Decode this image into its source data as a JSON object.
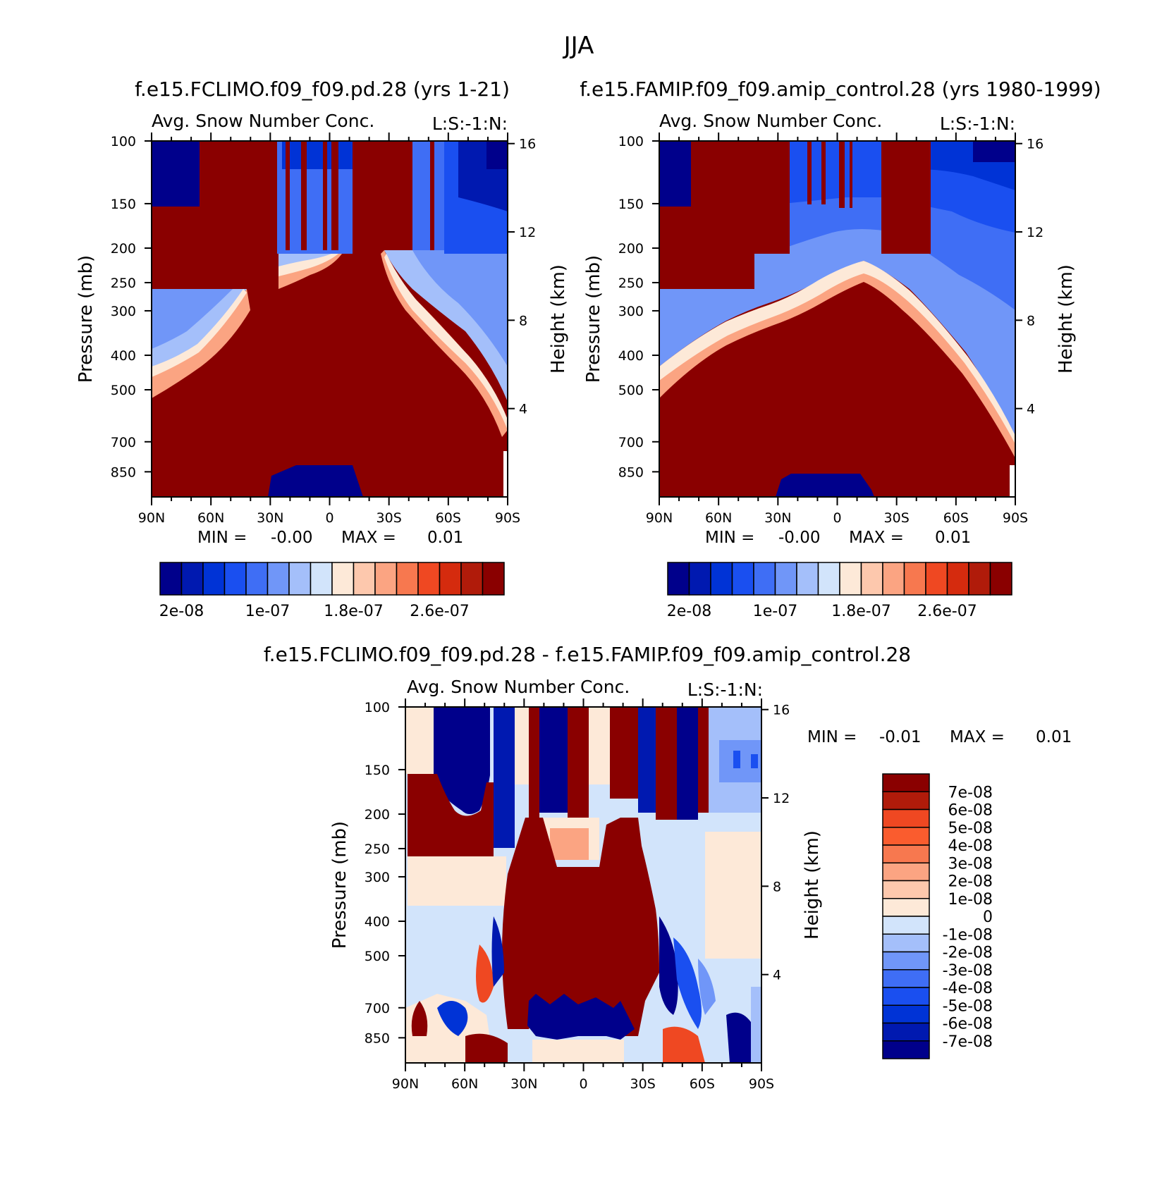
{
  "figure": {
    "main_title": "JJA"
  },
  "colors": {
    "seq_palette": [
      "#00008b",
      "#0019b0",
      "#0033d6",
      "#1a4ff0",
      "#3f6ef5",
      "#7096f8",
      "#a4bffa",
      "#d2e4fb",
      "#fde9d8",
      "#fdc8ad",
      "#fba482",
      "#f7784f",
      "#ef4822",
      "#d52b0e",
      "#b01b0a",
      "#8a0000"
    ],
    "diff_palette": [
      "#8a0000",
      "#b01b0a",
      "#ef4822",
      "#fa5c2e",
      "#f7784f",
      "#fba482",
      "#fdc8ad",
      "#fde9d8",
      "#d2e4fb",
      "#a4bffa",
      "#7096f8",
      "#3f6ef5",
      "#1a4ff0",
      "#0033d6",
      "#0019b0",
      "#00008b"
    ]
  },
  "chart_data": [
    {
      "type": "heatmap",
      "id": "panel1",
      "title": "f.e15.FCLIMO.f09_f09.pd.28 (yrs 1-21)",
      "subtitle_left": "Avg. Snow Number Conc.",
      "subtitle_right": "L:S:-1:N:",
      "xlabel": "",
      "ylabel": "Pressure (mb)",
      "y2label": "Height (km)",
      "x_ticks": [
        "90N",
        "60N",
        "30N",
        "0",
        "30S",
        "60S",
        "90S"
      ],
      "y_ticks": [
        "100",
        "150",
        "200",
        "250",
        "300",
        "400",
        "500",
        "700",
        "850"
      ],
      "y_values": [
        100,
        150,
        200,
        250,
        300,
        400,
        500,
        700,
        850
      ],
      "y2_ticks": [
        "16",
        "12",
        "8",
        "4"
      ],
      "y2_values": [
        16,
        12,
        8,
        4
      ],
      "ylim": [
        100,
        1000
      ],
      "x_range": [
        90,
        -90
      ],
      "min_label": "MIN =",
      "min_value": "-0.00",
      "max_label": "MAX =",
      "max_value": "0.01",
      "colorbar_labels": [
        "2e-08",
        "1e-07",
        "1.8e-07",
        "2.6e-07"
      ],
      "colorbar_levels": 16
    },
    {
      "type": "heatmap",
      "id": "panel2",
      "title": "f.e15.FAMIP.f09_f09.amip_control.28 (yrs 1980-1999)",
      "subtitle_left": "Avg. Snow Number Conc.",
      "subtitle_right": "L:S:-1:N:",
      "xlabel": "",
      "ylabel": "Pressure (mb)",
      "y2label": "Height (km)",
      "x_ticks": [
        "90N",
        "60N",
        "30N",
        "0",
        "30S",
        "60S",
        "90S"
      ],
      "y_ticks": [
        "100",
        "150",
        "200",
        "250",
        "300",
        "400",
        "500",
        "700",
        "850"
      ],
      "y_values": [
        100,
        150,
        200,
        250,
        300,
        400,
        500,
        700,
        850
      ],
      "y2_ticks": [
        "16",
        "12",
        "8",
        "4"
      ],
      "y2_values": [
        16,
        12,
        8,
        4
      ],
      "ylim": [
        100,
        1000
      ],
      "x_range": [
        90,
        -90
      ],
      "min_label": "MIN =",
      "min_value": "-0.00",
      "max_label": "MAX =",
      "max_value": "0.01",
      "colorbar_labels": [
        "2e-08",
        "1e-07",
        "1.8e-07",
        "2.6e-07"
      ],
      "colorbar_levels": 16
    },
    {
      "type": "heatmap",
      "id": "panel3",
      "title": "f.e15.FCLIMO.f09_f09.pd.28 - f.e15.FAMIP.f09_f09.amip_control.28",
      "subtitle_left": "Avg. Snow Number Conc.",
      "subtitle_right": "L:S:-1:N:",
      "xlabel": "",
      "ylabel": "Pressure (mb)",
      "y2label": "Height (km)",
      "x_ticks": [
        "90N",
        "60N",
        "30N",
        "0",
        "30S",
        "60S",
        "90S"
      ],
      "y_ticks": [
        "100",
        "150",
        "200",
        "250",
        "300",
        "400",
        "500",
        "700",
        "850"
      ],
      "y_values": [
        100,
        150,
        200,
        250,
        300,
        400,
        500,
        700,
        850
      ],
      "y2_ticks": [
        "16",
        "12",
        "8",
        "4"
      ],
      "y2_values": [
        16,
        12,
        8,
        4
      ],
      "ylim": [
        100,
        1000
      ],
      "x_range": [
        90,
        -90
      ],
      "min_label": "MIN =",
      "min_value": "-0.01",
      "max_label": "MAX =",
      "max_value": "0.01",
      "colorbar_labels": [
        "7e-08",
        "6e-08",
        "5e-08",
        "4e-08",
        "3e-08",
        "2e-08",
        "1e-08",
        "0",
        "-1e-08",
        "-2e-08",
        "-3e-08",
        "-4e-08",
        "-5e-08",
        "-6e-08",
        "-7e-08"
      ],
      "colorbar_levels": 16
    }
  ]
}
